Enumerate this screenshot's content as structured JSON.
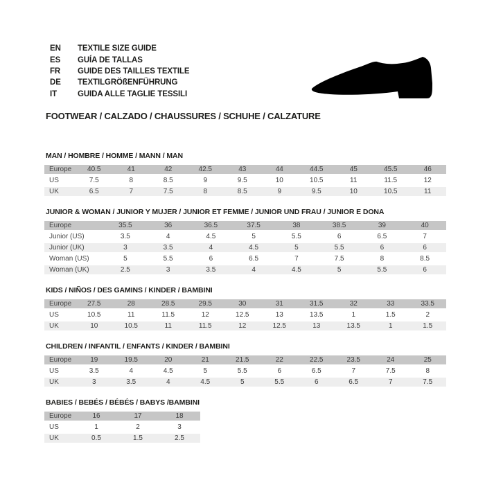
{
  "header": {
    "languages": [
      {
        "code": "EN",
        "label": "TEXTILE SIZE GUIDE"
      },
      {
        "code": "ES",
        "label": "GUÍA DE TALLAS"
      },
      {
        "code": "FR",
        "label": "GUIDE DES TAILLES TEXTILE"
      },
      {
        "code": "DE",
        "label": "TEXTILGRÖßENFÜHRUNG"
      },
      {
        "code": "IT",
        "label": "GUIDA ALLE TAGLIE TESSILI"
      }
    ],
    "category_title": "FOOTWEAR / CALZADO / CHAUSSURES / SCHUHE / CALZATURE",
    "shoe_icon": "shoe-silhouette-icon"
  },
  "colors": {
    "header_row": "#c6c6c6",
    "alt_row": "#eeeeee",
    "text": "#1d1d1b",
    "table_text": "#3c3c3c",
    "label_text": "#474747",
    "shoe": "#000000"
  },
  "size_tables": [
    {
      "title": "MAN / HOMBRE / HOMME / MANN / MAN",
      "rows": [
        {
          "label": "Europe",
          "values": [
            "40.5",
            "41",
            "42",
            "42.5",
            "43",
            "44",
            "44.5",
            "45",
            "45.5",
            "46"
          ]
        },
        {
          "label": "US",
          "values": [
            "7.5",
            "8",
            "8.5",
            "9",
            "9.5",
            "10",
            "10.5",
            "11",
            "11.5",
            "12"
          ]
        },
        {
          "label": "UK",
          "values": [
            "6.5",
            "7",
            "7.5",
            "8",
            "8.5",
            "9",
            "9.5",
            "10",
            "10.5",
            "11"
          ]
        }
      ]
    },
    {
      "title": "JUNIOR & WOMAN / JUNIOR Y MUJER / JUNIOR ET FEMME / JUNIOR UND FRAU / JUNIOR E DONA",
      "rows": [
        {
          "label": "Europe",
          "values": [
            "35.5",
            "36",
            "36.5",
            "37.5",
            "38",
            "38.5",
            "39",
            "40"
          ]
        },
        {
          "label": "Junior (US)",
          "values": [
            "3.5",
            "4",
            "4.5",
            "5",
            "5.5",
            "6",
            "6.5",
            "7"
          ]
        },
        {
          "label": "Junior (UK)",
          "values": [
            "3",
            "3.5",
            "4",
            "4.5",
            "5",
            "5.5",
            "6",
            "6"
          ]
        },
        {
          "label": "Woman (US)",
          "values": [
            "5",
            "5.5",
            "6",
            "6.5",
            "7",
            "7.5",
            "8",
            "8.5"
          ]
        },
        {
          "label": "Woman (UK)",
          "values": [
            "2.5",
            "3",
            "3.5",
            "4",
            "4.5",
            "5",
            "5.5",
            "6"
          ]
        }
      ]
    },
    {
      "title": "KIDS / NIÑOS / DES GAMINS / KINDER / BAMBINI",
      "rows": [
        {
          "label": "Europe",
          "values": [
            "27.5",
            "28",
            "28.5",
            "29.5",
            "30",
            "31",
            "31.5",
            "32",
            "33",
            "33.5"
          ]
        },
        {
          "label": "US",
          "values": [
            "10.5",
            "11",
            "11.5",
            "12",
            "12.5",
            "13",
            "13.5",
            "1",
            "1.5",
            "2"
          ]
        },
        {
          "label": "UK",
          "values": [
            "10",
            "10.5",
            "11",
            "11.5",
            "12",
            "12.5",
            "13",
            "13.5",
            "1",
            "1.5"
          ]
        }
      ]
    },
    {
      "title": "CHILDREN / INFANTIL / ENFANTS / KINDER / BAMBINI",
      "rows": [
        {
          "label": "Europe",
          "values": [
            "19",
            "19.5",
            "20",
            "21",
            "21.5",
            "22",
            "22.5",
            "23.5",
            "24",
            "25"
          ]
        },
        {
          "label": "US",
          "values": [
            "3.5",
            "4",
            "4.5",
            "5",
            "5.5",
            "6",
            "6.5",
            "7",
            "7.5",
            "8"
          ]
        },
        {
          "label": "UK",
          "values": [
            "3",
            "3.5",
            "4",
            "4.5",
            "5",
            "5.5",
            "6",
            "6.5",
            "7",
            "7.5"
          ]
        }
      ]
    },
    {
      "title": "BABIES / BEBÉS / BÉBÉS / BABYS /BAMBINI",
      "rows": [
        {
          "label": "Europe",
          "values": [
            "16",
            "17",
            "18"
          ]
        },
        {
          "label": "US",
          "values": [
            "1",
            "2",
            "3"
          ]
        },
        {
          "label": "UK",
          "values": [
            "0.5",
            "1.5",
            "2.5"
          ]
        }
      ]
    }
  ]
}
